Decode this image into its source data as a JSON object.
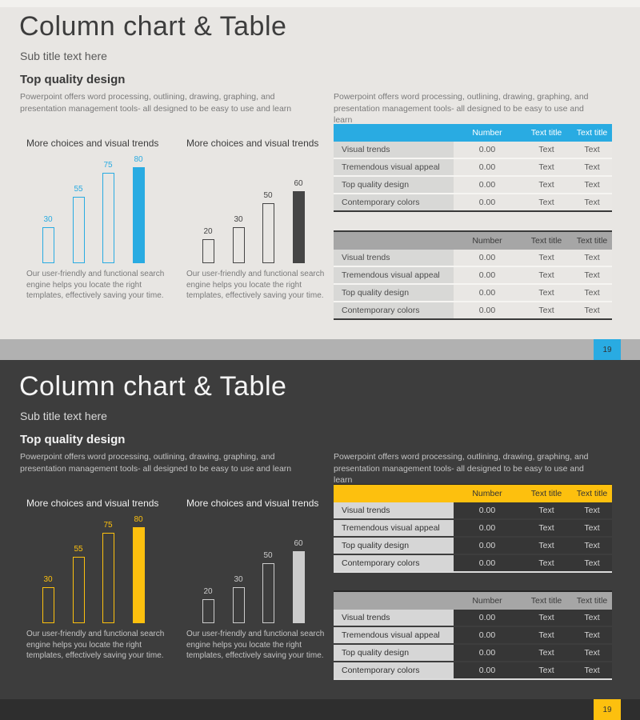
{
  "slides": [
    {
      "theme": "light",
      "accent": "#29abe2",
      "title": "Column chart & Table",
      "subtitle": "Sub title text here",
      "heading": "Top quality design",
      "paragraph_left": "Powerpoint offers word processing, outlining, drawing, graphing, and presentation management tools- all designed to be easy to use and learn",
      "paragraph_right": "Powerpoint offers word processing, outlining, drawing, graphing, and presentation management tools- all designed to be easy to use and learn",
      "page_number": "19",
      "charts": [
        {
          "type": "bar",
          "title": "More choices and visual trends",
          "values": [
            30,
            55,
            75,
            80
          ],
          "ylim": [
            0,
            80
          ],
          "bar_color": "#29abe2",
          "solid_last": true,
          "caption": "Our user-friendly and functional search engine helps you locate the right templates, effectively saving your time."
        },
        {
          "type": "bar",
          "title": "More choices and visual trends",
          "values": [
            20,
            30,
            50,
            60
          ],
          "ylim": [
            0,
            80
          ],
          "bar_color": "#454545",
          "solid_last": true,
          "caption": "Our user-friendly and functional search engine helps you locate the right templates, effectively saving your time."
        }
      ],
      "tables": [
        {
          "header": [
            "",
            "Number",
            "Text title",
            "Text title"
          ],
          "header_bg": "#29abe2",
          "header_text": "#ffffff",
          "rows": [
            [
              "Visual trends",
              "0.00",
              "Text",
              "Text"
            ],
            [
              "Tremendous visual appeal",
              "0.00",
              "Text",
              "Text"
            ],
            [
              "Top quality design",
              "0.00",
              "Text",
              "Text"
            ],
            [
              "Contemporary colors",
              "0.00",
              "Text",
              "Text"
            ]
          ]
        },
        {
          "header": [
            "",
            "Number",
            "Text title",
            "Text title"
          ],
          "header_bg": "#a6a6a6",
          "header_text": "#3a3a3a",
          "rows": [
            [
              "Visual trends",
              "0.00",
              "Text",
              "Text"
            ],
            [
              "Tremendous visual appeal",
              "0.00",
              "Text",
              "Text"
            ],
            [
              "Top quality design",
              "0.00",
              "Text",
              "Text"
            ],
            [
              "Contemporary colors",
              "0.00",
              "Text",
              "Text"
            ]
          ]
        }
      ]
    },
    {
      "theme": "dark",
      "accent": "#fdc00e",
      "title": "Column chart & Table",
      "subtitle": "Sub title text here",
      "heading": "Top quality design",
      "paragraph_left": "Powerpoint offers word processing, outlining, drawing, graphing, and presentation management tools- all designed to be easy to use and learn",
      "paragraph_right": "Powerpoint offers word processing, outlining, drawing, graphing, and presentation management tools- all designed to be easy to use and learn",
      "page_number": "19",
      "charts": [
        {
          "type": "bar",
          "title": "More choices and visual trends",
          "values": [
            30,
            55,
            75,
            80
          ],
          "ylim": [
            0,
            80
          ],
          "bar_color": "#fdc00e",
          "solid_last": true,
          "caption": "Our user-friendly and functional search engine helps you locate the right templates, effectively saving your time."
        },
        {
          "type": "bar",
          "title": "More choices and visual trends",
          "values": [
            20,
            30,
            50,
            60
          ],
          "ylim": [
            0,
            80
          ],
          "bar_color": "#cccccc",
          "solid_last": true,
          "caption": "Our user-friendly and functional search engine helps you locate the right templates, effectively saving your time."
        }
      ],
      "tables": [
        {
          "header": [
            "",
            "Number",
            "Text title",
            "Text title"
          ],
          "header_bg": "#fdc00e",
          "header_text": "#333333",
          "rows": [
            [
              "Visual trends",
              "0.00",
              "Text",
              "Text"
            ],
            [
              "Tremendous visual appeal",
              "0.00",
              "Text",
              "Text"
            ],
            [
              "Top quality design",
              "0.00",
              "Text",
              "Text"
            ],
            [
              "Contemporary colors",
              "0.00",
              "Text",
              "Text"
            ]
          ]
        },
        {
          "header": [
            "",
            "Number",
            "Text title",
            "Text title"
          ],
          "header_bg": "#a6a6a6",
          "header_text": "#3a3a3a",
          "rows": [
            [
              "Visual trends",
              "0.00",
              "Text",
              "Text"
            ],
            [
              "Tremendous visual appeal",
              "0.00",
              "Text",
              "Text"
            ],
            [
              "Top quality design",
              "0.00",
              "Text",
              "Text"
            ],
            [
              "Contemporary colors",
              "0.00",
              "Text",
              "Text"
            ]
          ]
        }
      ]
    }
  ]
}
